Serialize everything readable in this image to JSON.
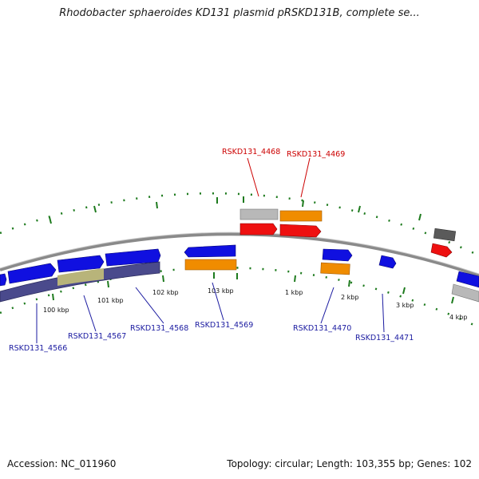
{
  "title": "Rhodobacter sphaeroides KD131 plasmid pRSKD131B, complete se...",
  "accession": "Accession: NC_011960",
  "summary": "Topology: circular; Length: 103,355 bp; Genes: 102",
  "colors": {
    "backbone": "#8a8a8a",
    "tick": "#1d7a1d",
    "gene_blue": "#1010e0",
    "gene_orange": "#f08c00",
    "gene_red": "#ee1010",
    "gene_gray": "#b8b8b8",
    "gene_darkgray": "#5a5a5a",
    "band_purple": "#4a4a8c",
    "band_olive": "#b8b47a"
  },
  "ticks": [
    "100 kbp",
    "101 kbp",
    "102 kbp",
    "103 kbp",
    "1 kbp",
    "2 kbp",
    "3 kbp",
    "4 kbp"
  ],
  "gene_labels": [
    {
      "text": "RSKD131_4468",
      "color": "red"
    },
    {
      "text": "RSKD131_4469",
      "color": "red"
    },
    {
      "text": "RSKD131_4566",
      "color": "blue"
    },
    {
      "text": "RSKD131_4567",
      "color": "blue"
    },
    {
      "text": "RSKD131_4568",
      "color": "blue"
    },
    {
      "text": "RSKD131_4569",
      "color": "blue"
    },
    {
      "text": "RSKD131_4470",
      "color": "blue"
    },
    {
      "text": "RSKD131_4471",
      "color": "blue"
    }
  ]
}
